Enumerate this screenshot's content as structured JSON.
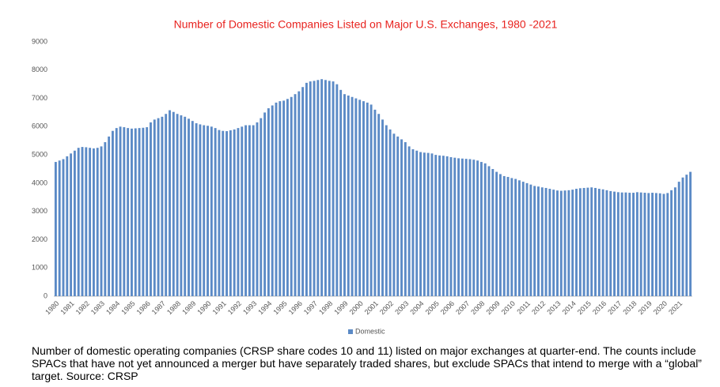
{
  "chart_data": {
    "type": "bar",
    "title": "Number of Domestic Companies Listed on Major U.S. Exchanges, 1980 -2021",
    "caption": "Number of domestic operating companies (CRSP share codes 10 and 11) listed on major exchanges at quarter-end. The counts include SPACs that have not yet announced a merger but have separately traded shares, but exclude SPACs that intend to merge with a “global” target. Source: CRSP",
    "series": [
      {
        "name": "Domestic",
        "color": "#5b8ac6",
        "values": [
          4750,
          4800,
          4850,
          4950,
          5050,
          5150,
          5250,
          5280,
          5270,
          5250,
          5230,
          5250,
          5300,
          5450,
          5650,
          5850,
          5950,
          6000,
          5980,
          5950,
          5930,
          5940,
          5950,
          5960,
          5980,
          6150,
          6250,
          6300,
          6350,
          6450,
          6580,
          6520,
          6450,
          6400,
          6350,
          6280,
          6200,
          6120,
          6080,
          6050,
          6030,
          6000,
          5950,
          5880,
          5850,
          5840,
          5870,
          5900,
          5950,
          6000,
          6050,
          6050,
          6050,
          6150,
          6300,
          6500,
          6650,
          6750,
          6850,
          6900,
          6920,
          6980,
          7050,
          7150,
          7250,
          7400,
          7550,
          7600,
          7620,
          7650,
          7680,
          7650,
          7620,
          7600,
          7500,
          7300,
          7150,
          7100,
          7050,
          7000,
          6950,
          6900,
          6850,
          6780,
          6600,
          6450,
          6250,
          6050,
          5900,
          5750,
          5650,
          5550,
          5450,
          5300,
          5200,
          5150,
          5100,
          5080,
          5070,
          5050,
          5000,
          4980,
          4970,
          4950,
          4920,
          4900,
          4880,
          4870,
          4860,
          4850,
          4830,
          4800,
          4750,
          4700,
          4600,
          4500,
          4400,
          4320,
          4250,
          4220,
          4180,
          4150,
          4100,
          4050,
          4000,
          3950,
          3900,
          3880,
          3850,
          3830,
          3800,
          3770,
          3740,
          3730,
          3740,
          3750,
          3770,
          3800,
          3820,
          3830,
          3840,
          3850,
          3830,
          3800,
          3780,
          3750,
          3720,
          3700,
          3680,
          3670,
          3670,
          3660,
          3660,
          3680,
          3670,
          3660,
          3650,
          3660,
          3650,
          3640,
          3620,
          3650,
          3750,
          3850,
          4050,
          4200,
          4300,
          4400
        ]
      }
    ],
    "categories": [
      "1980",
      null,
      null,
      null,
      "1981",
      null,
      null,
      null,
      "1982",
      null,
      null,
      null,
      "1983",
      null,
      null,
      null,
      "1984",
      null,
      null,
      null,
      "1985",
      null,
      null,
      null,
      "1986",
      null,
      null,
      null,
      "1987",
      null,
      null,
      null,
      "1988",
      null,
      null,
      null,
      "1989",
      null,
      null,
      null,
      "1990",
      null,
      null,
      null,
      "1991",
      null,
      null,
      null,
      "1992",
      null,
      null,
      null,
      "1993",
      null,
      null,
      null,
      "1994",
      null,
      null,
      null,
      "1995",
      null,
      null,
      null,
      "1996",
      null,
      null,
      null,
      "1997",
      null,
      null,
      null,
      "1998",
      null,
      null,
      null,
      "1999",
      null,
      null,
      null,
      "2000",
      null,
      null,
      null,
      "2001",
      null,
      null,
      null,
      "2002",
      null,
      null,
      null,
      "2003",
      null,
      null,
      null,
      "2004",
      null,
      null,
      null,
      "2005",
      null,
      null,
      null,
      "2006",
      null,
      null,
      null,
      "2007",
      null,
      null,
      null,
      "2008",
      null,
      null,
      null,
      "2009",
      null,
      null,
      null,
      "2010",
      null,
      null,
      null,
      "2011",
      null,
      null,
      null,
      "2012",
      null,
      null,
      null,
      "2013",
      null,
      null,
      null,
      "2014",
      null,
      null,
      null,
      "2015",
      null,
      null,
      null,
      "2016",
      null,
      null,
      null,
      "2017",
      null,
      null,
      null,
      "2018",
      null,
      null,
      null,
      "2019",
      null,
      null,
      null,
      "2020",
      null,
      null,
      null,
      "2021",
      null,
      null,
      null
    ],
    "ylim": [
      0,
      9000
    ],
    "yticks": [
      0,
      1000,
      2000,
      3000,
      4000,
      5000,
      6000,
      7000,
      8000,
      9000
    ],
    "grid": false,
    "legend": "bottom"
  }
}
